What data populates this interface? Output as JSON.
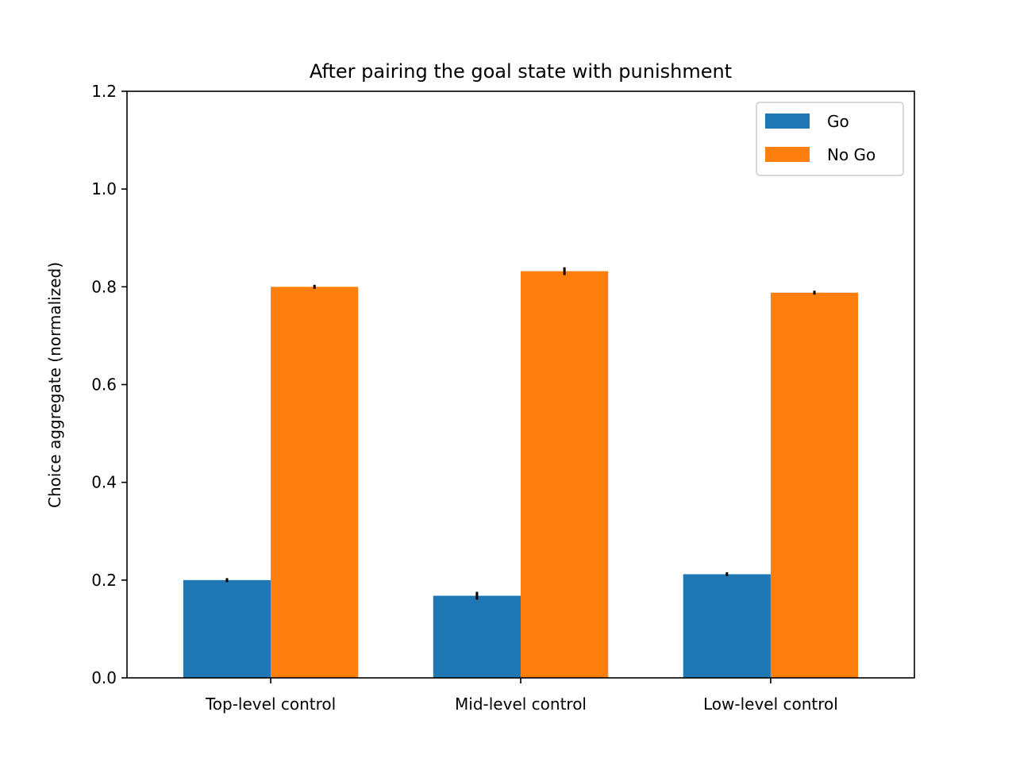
{
  "chart_data": {
    "type": "bar",
    "title": "After pairing the goal state with punishment",
    "xlabel": "",
    "ylabel": "Choice aggregate (normalized)",
    "categories": [
      "Top-level control",
      "Mid-level control",
      "Low-level control"
    ],
    "series": [
      {
        "name": "Go",
        "color": "#1f77b4",
        "values": [
          0.2,
          0.168,
          0.212
        ],
        "errors": [
          0.004,
          0.008,
          0.004
        ]
      },
      {
        "name": "No Go",
        "color": "#ff7f0e",
        "values": [
          0.8,
          0.832,
          0.788
        ],
        "errors": [
          0.004,
          0.008,
          0.004
        ]
      }
    ],
    "ylim": [
      0,
      1.2
    ],
    "yticks": [
      "0.0",
      "0.2",
      "0.4",
      "0.6",
      "0.8",
      "1.0",
      "1.2"
    ],
    "grid": false,
    "legend_position": "top-right"
  }
}
